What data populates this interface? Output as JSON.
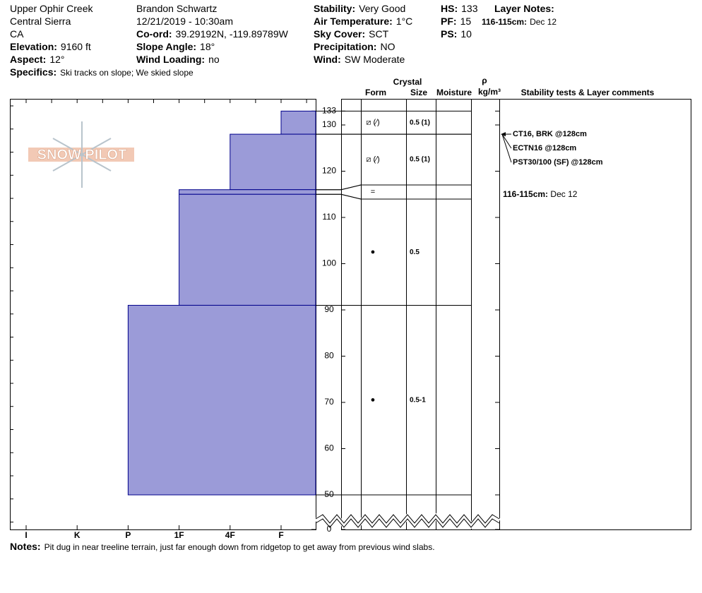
{
  "header": {
    "location": [
      "Upper Ophir Creek",
      "Central Sierra",
      "CA"
    ],
    "elevation": {
      "label": "Elevation:",
      "value": "9160 ft"
    },
    "aspect": {
      "label": "Aspect:",
      "value": "12°"
    },
    "specifics": {
      "label": "Specifics:",
      "value": "Ski tracks on slope; We skied slope"
    },
    "observer": "Brandon Schwartz",
    "datetime": "12/21/2019 - 10:30am",
    "coord": {
      "label": "Co-ord:",
      "value": "39.29192N, -119.89789W"
    },
    "slope_angle": {
      "label": "Slope Angle:",
      "value": "18°"
    },
    "wind_loading": {
      "label": "Wind Loading:",
      "value": "no"
    },
    "stability": {
      "label": "Stability:",
      "value": "Very Good"
    },
    "air_temperature": {
      "label": "Air Temperature:",
      "value": "1°C"
    },
    "sky_cover": {
      "label": "Sky Cover:",
      "value": "SCT"
    },
    "precipitation": {
      "label": "Precipitation:",
      "value": "NO"
    },
    "wind": {
      "label": "Wind:",
      "value": "SW Moderate"
    },
    "hs": {
      "label": "HS:",
      "value": "133"
    },
    "pf": {
      "label": "PF:",
      "value": "15"
    },
    "ps": {
      "label": "PS:",
      "value": "10"
    },
    "layer_notes": {
      "label": "Layer Notes:",
      "items": [
        {
          "depth": "116-115cm:",
          "text": "Dec 12"
        }
      ]
    }
  },
  "logo": "SNOW PILOT",
  "columns": {
    "crystal": "Crystal",
    "form": "Form",
    "size": "Size",
    "moisture": "Moisture",
    "density_symbol": "ρ",
    "density_unit": "kg/m³",
    "comments": "Stability tests & Layer comments"
  },
  "chart_data": {
    "type": "snow-profile",
    "hardness_scale": [
      "I",
      "K",
      "P",
      "1F",
      "4F",
      "F"
    ],
    "ylim": [
      0,
      133
    ],
    "yticks": [
      0,
      50,
      60,
      70,
      80,
      90,
      100,
      110,
      120,
      130,
      133
    ],
    "color": "#9b9bd8",
    "layers": [
      {
        "top": 133,
        "bottom": 128,
        "hardness": "F",
        "form": "⧄ (⁄)",
        "size": "0.5 (1)"
      },
      {
        "top": 128,
        "bottom": 116,
        "hardness": "4F",
        "form": "⧄ (⁄)",
        "size": "0.5 (1)"
      },
      {
        "top": 116,
        "bottom": 115,
        "hardness": "1F",
        "form": "="
      },
      {
        "top": 115,
        "bottom": 91,
        "hardness": "1F",
        "form": "●",
        "size": "0.5"
      },
      {
        "top": 91,
        "bottom": 50,
        "hardness": "P",
        "form": "●",
        "size": "0.5-1"
      }
    ]
  },
  "stability_tests": {
    "depth": 128,
    "items": [
      "CT16, BRK @128cm",
      "ECTN16 @128cm",
      "PST30/100 (SF) @128cm"
    ]
  },
  "layer_comments": [
    {
      "label": "116-115cm:",
      "text": "Dec 12"
    }
  ],
  "notes": {
    "label": "Notes:",
    "text": "Pit dug in near treeline terrain, just far enough down from ridgetop to get away from previous wind slabs."
  }
}
